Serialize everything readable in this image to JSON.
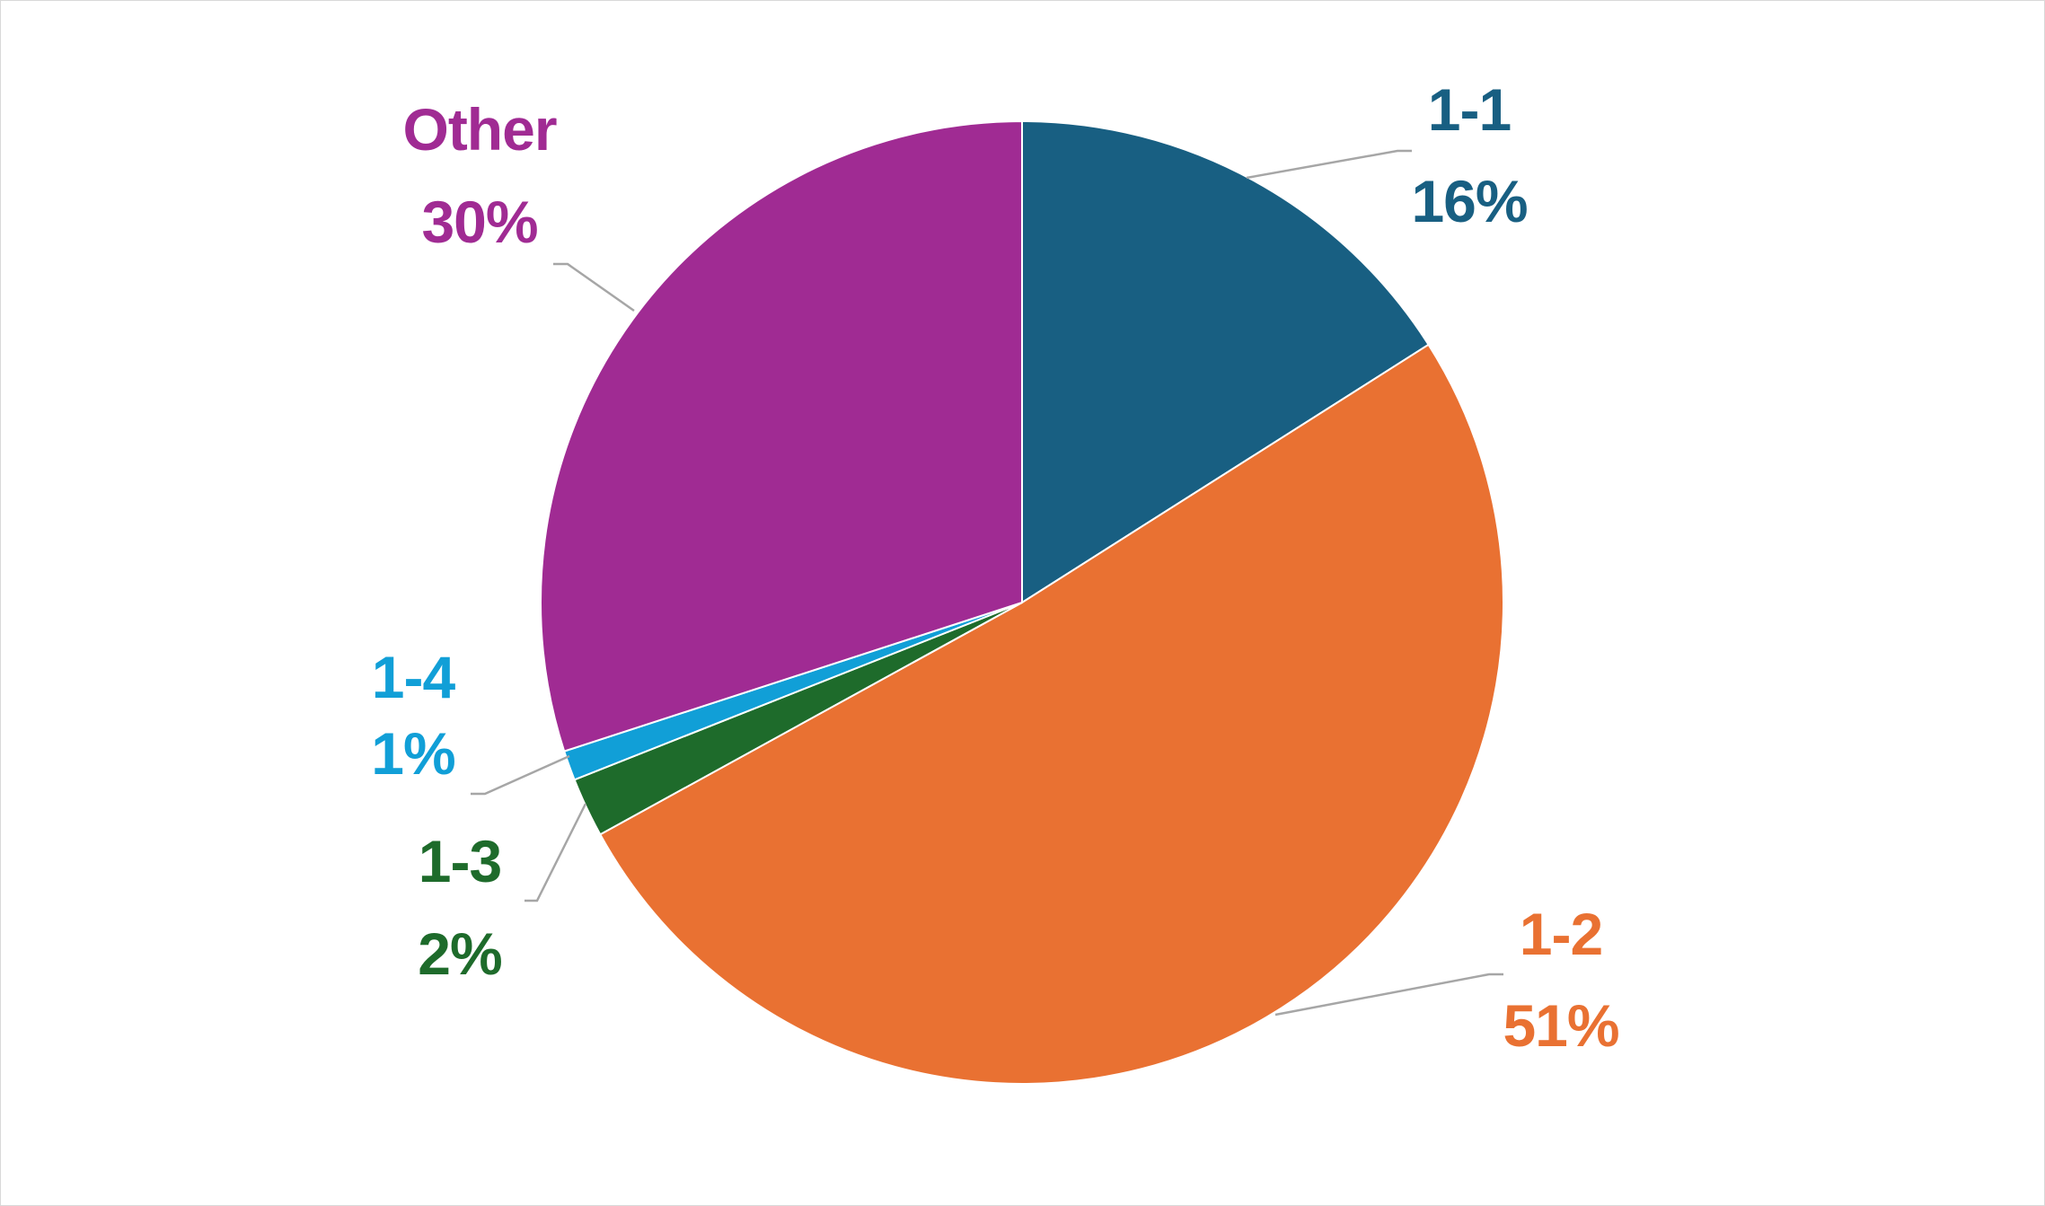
{
  "chart_data": {
    "type": "pie",
    "title": "",
    "start_angle_deg": 0,
    "direction": "clockwise",
    "slices": [
      {
        "label": "1-1",
        "percent_label": "16%",
        "value": 16,
        "color": "#185f82"
      },
      {
        "label": "1-2",
        "percent_label": "51%",
        "value": 51,
        "color": "#e97132"
      },
      {
        "label": "1-3",
        "percent_label": "2%",
        "value": 2,
        "color": "#1e6b2b"
      },
      {
        "label": "1-4",
        "percent_label": "1%",
        "value": 1,
        "color": "#119fd7"
      },
      {
        "label": "Other",
        "percent_label": "30%",
        "value": 30,
        "color": "#a02b93"
      }
    ],
    "legend": "none",
    "data_labels": "outside-with-leader-lines"
  }
}
